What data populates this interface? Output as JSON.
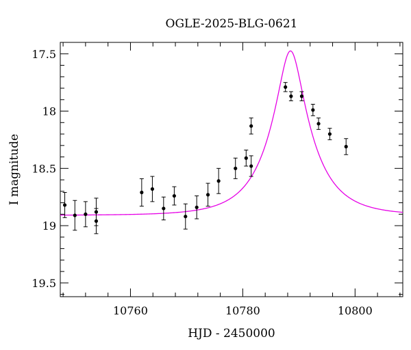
{
  "chart_data": {
    "type": "scatter",
    "title": "OGLE-2025-BLG-0621",
    "xlabel": "HJD - 2450000",
    "ylabel": "I magnitude",
    "xlim": [
      10747.5,
      10808.5
    ],
    "ylim": [
      19.62,
      17.4
    ],
    "y_inverted": true,
    "x_ticks": [
      10760,
      10780,
      10800
    ],
    "x_tick_labels": [
      "10760",
      "10780",
      "10800"
    ],
    "y_ticks": [
      17.5,
      18,
      18.5,
      19,
      19.5
    ],
    "y_tick_labels": [
      "17.5",
      "18",
      "18.5",
      "19",
      "19.5"
    ],
    "grid": false,
    "series": [
      {
        "kind": "points_with_errorbars",
        "color": "#000000",
        "points": [
          {
            "x": 10748.3,
            "y": 18.82,
            "err": 0.11
          },
          {
            "x": 10750.1,
            "y": 18.91,
            "err": 0.13
          },
          {
            "x": 10752.0,
            "y": 18.9,
            "err": 0.11
          },
          {
            "x": 10753.9,
            "y": 18.88,
            "err": 0.12
          },
          {
            "x": 10753.9,
            "y": 18.96,
            "err": 0.11
          },
          {
            "x": 10762.0,
            "y": 18.71,
            "err": 0.12
          },
          {
            "x": 10763.9,
            "y": 18.68,
            "err": 0.11
          },
          {
            "x": 10765.9,
            "y": 18.85,
            "err": 0.1
          },
          {
            "x": 10767.8,
            "y": 18.74,
            "err": 0.08
          },
          {
            "x": 10769.8,
            "y": 18.92,
            "err": 0.11
          },
          {
            "x": 10771.8,
            "y": 18.84,
            "err": 0.1
          },
          {
            "x": 10773.8,
            "y": 18.73,
            "err": 0.1
          },
          {
            "x": 10775.7,
            "y": 18.61,
            "err": 0.11
          },
          {
            "x": 10778.7,
            "y": 18.5,
            "err": 0.09
          },
          {
            "x": 10780.6,
            "y": 18.41,
            "err": 0.07
          },
          {
            "x": 10781.5,
            "y": 18.48,
            "err": 0.09
          },
          {
            "x": 10781.5,
            "y": 18.13,
            "err": 0.07
          },
          {
            "x": 10787.6,
            "y": 17.79,
            "err": 0.04
          },
          {
            "x": 10788.6,
            "y": 17.87,
            "err": 0.04
          },
          {
            "x": 10790.5,
            "y": 17.87,
            "err": 0.04
          },
          {
            "x": 10792.5,
            "y": 17.99,
            "err": 0.05
          },
          {
            "x": 10793.5,
            "y": 18.11,
            "err": 0.05
          },
          {
            "x": 10795.5,
            "y": 18.2,
            "err": 0.05
          },
          {
            "x": 10798.4,
            "y": 18.31,
            "err": 0.07
          }
        ]
      },
      {
        "kind": "model_curve",
        "color": "#e600e6",
        "model": "pspl",
        "baseline_mag": 18.91,
        "t0": 10788.5,
        "tE": 7.5,
        "u0": 0.274
      }
    ]
  }
}
